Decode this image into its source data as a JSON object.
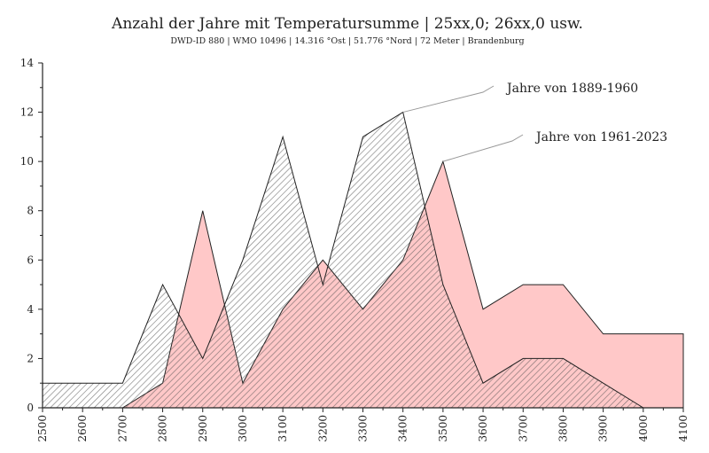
{
  "chart_data": {
    "type": "area",
    "title": "Anzahl der Jahre mit Temperatursumme | 25xx,0; 26xx,0  usw.",
    "subtitle": "DWD-ID 880  | WMO 10496  | 14.316 °Ost | 51.776 °Nord | 72 Meter | Brandenburg",
    "xlabel": "",
    "ylabel": "",
    "xlim": [
      2500,
      4100
    ],
    "ylim": [
      0,
      14
    ],
    "x_ticks": [
      2500,
      2600,
      2700,
      2800,
      2900,
      3000,
      3100,
      3200,
      3300,
      3400,
      3500,
      3600,
      3700,
      3800,
      3900,
      4000,
      4100
    ],
    "y_ticks": [
      0,
      2,
      4,
      6,
      8,
      10,
      12,
      14
    ],
    "series": [
      {
        "name": "Jahre von 1961-2023",
        "color": "#ffc8c8",
        "x": [
          2700,
          2800,
          2900,
          3000,
          3100,
          3200,
          3300,
          3400,
          3500,
          3600,
          3700,
          3800,
          3900,
          4000,
          4100
        ],
        "values": [
          0,
          1,
          8,
          1,
          4,
          6,
          4,
          6,
          10,
          4,
          5,
          5,
          3,
          3,
          3
        ]
      },
      {
        "name": "Jahre von 1889-1960",
        "color": "#888888",
        "x": [
          2500,
          2600,
          2700,
          2800,
          2900,
          3000,
          3100,
          3200,
          3300,
          3400,
          3500,
          3600,
          3700,
          3800,
          3900,
          4000
        ],
        "values": [
          1,
          1,
          1,
          5,
          2,
          6,
          11,
          5,
          11,
          12,
          5,
          1,
          2,
          2,
          1,
          0
        ]
      }
    ]
  }
}
